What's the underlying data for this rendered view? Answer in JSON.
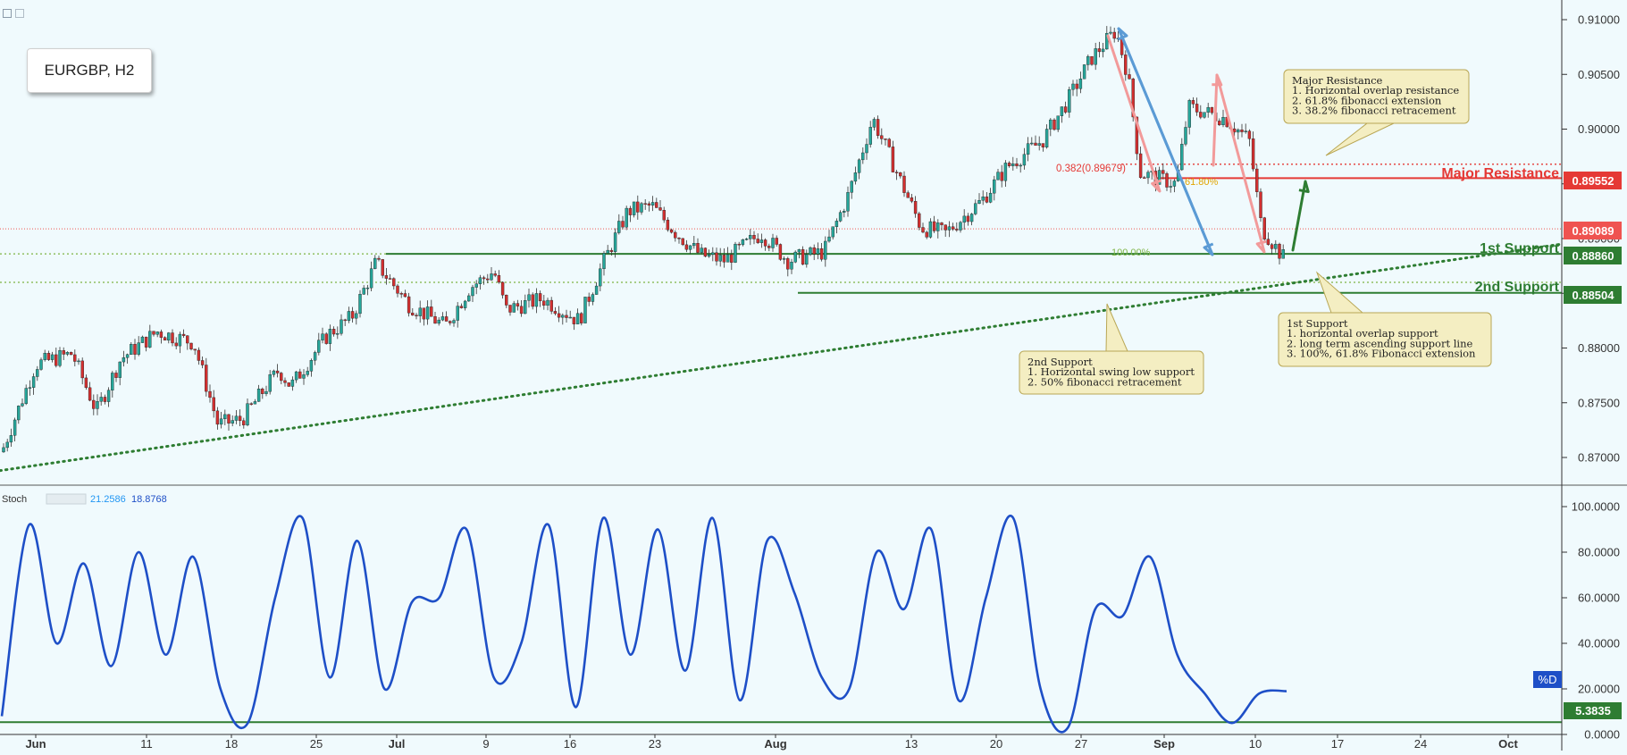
{
  "symbol": "EURGBP, H2",
  "labels": {
    "major_resistance": "Major Resistance",
    "first_support": "1st Support",
    "second_support": "2nd Support",
    "fib_0382": "0.382(0.89679)",
    "fib_618": "61.80%",
    "fib_100": "100.00%"
  },
  "annotations": {
    "major_resistance": [
      "Major Resistance",
      "1. Horizontal overlap resistance",
      "2. 61.8% fibonacci extension",
      "3. 38.2% fibonacci retracement"
    ],
    "first_support": [
      "1st Support",
      "1. horizontal overlap support",
      "2. long term ascending support line",
      "3. 100%, 61.8% Fibonacci extension"
    ],
    "second_support": [
      "2nd Support",
      "1. Horizontal swing low support",
      "2. 50% fibonacci retracement"
    ]
  },
  "price_tags": [
    {
      "value": "0.89552",
      "color": "#e53935"
    },
    {
      "value": "0.89089",
      "color": "#ef5350"
    },
    {
      "value": "0.88860",
      "color": "#2e7d32"
    },
    {
      "value": "0.88504",
      "color": "#2e7d32"
    }
  ],
  "stoch": {
    "name": "Stoch",
    "k_value": "21.2586",
    "d_value": "18.8768",
    "d_label": "%D",
    "level": "5.3835",
    "colors": {
      "k": "#2196f3",
      "d": "#1e4fc7",
      "level": "#2e7d32"
    }
  },
  "colors": {
    "up_candle": "#26a69a",
    "down_candle": "#d32f2f",
    "background": "#f0fafd",
    "resistance": "#e53935",
    "support": "#2e7d32",
    "trendline": "#2e7d32",
    "annotation_fill": "#f4eec2",
    "annotation_border": "#b9a755"
  },
  "chart_data": [
    {
      "type": "candlestick",
      "title": "EURGBP, H2",
      "x_ticks": [
        "Jun",
        "11",
        "18",
        "25",
        "Jul",
        "9",
        "16",
        "23",
        "Aug",
        "13",
        "20",
        "27",
        "Sep",
        "10",
        "17",
        "24",
        "Oct"
      ],
      "y_ticks": [
        "0.91000",
        "0.90500",
        "0.90000",
        "0.89500",
        "0.89000",
        "0.88500",
        "0.88000",
        "0.87500",
        "0.87000"
      ],
      "ylim": [
        0.8675,
        0.9115
      ],
      "close_path": [
        {
          "x": "Jun",
          "y": 0.8705
        },
        {
          "x": "Jun 1",
          "y": 0.8785
        },
        {
          "x": "Jun 4",
          "y": 0.8795
        },
        {
          "x": "Jun 6",
          "y": 0.8742
        },
        {
          "x": "Jun 8",
          "y": 0.879
        },
        {
          "x": "Jun 11",
          "y": 0.8815
        },
        {
          "x": "Jun 14",
          "y": 0.8805
        },
        {
          "x": "Jun 16",
          "y": 0.873
        },
        {
          "x": "Jun 18",
          "y": 0.8735
        },
        {
          "x": "Jun 21",
          "y": 0.878
        },
        {
          "x": "Jun 22",
          "y": 0.8765
        },
        {
          "x": "Jun 25",
          "y": 0.8812
        },
        {
          "x": "Jun 27",
          "y": 0.8828
        },
        {
          "x": "Jun 29",
          "y": 0.8878
        },
        {
          "x": "Jul 2",
          "y": 0.884
        },
        {
          "x": "Jul 5",
          "y": 0.882
        },
        {
          "x": "Jul 7",
          "y": 0.8855
        },
        {
          "x": "Jul 9",
          "y": 0.887
        },
        {
          "x": "Jul 10",
          "y": 0.8835
        },
        {
          "x": "Jul 13",
          "y": 0.8845
        },
        {
          "x": "Jul 16",
          "y": 0.8825
        },
        {
          "x": "Jul 18",
          "y": 0.8878
        },
        {
          "x": "Jul 20",
          "y": 0.8925
        },
        {
          "x": "Jul 22",
          "y": 0.893
        },
        {
          "x": "Jul 24",
          "y": 0.8905
        },
        {
          "x": "Jul 26",
          "y": 0.8885
        },
        {
          "x": "Jul 28",
          "y": 0.888
        },
        {
          "x": "Jul 31",
          "y": 0.8905
        },
        {
          "x": "Aug 2",
          "y": 0.888
        },
        {
          "x": "Aug 5",
          "y": 0.8888
        },
        {
          "x": "Aug 7",
          "y": 0.894
        },
        {
          "x": "Aug 9",
          "y": 0.901
        },
        {
          "x": "Aug 11",
          "y": 0.896
        },
        {
          "x": "Aug 13",
          "y": 0.891
        },
        {
          "x": "Aug 15",
          "y": 0.8905
        },
        {
          "x": "Aug 18",
          "y": 0.8935
        },
        {
          "x": "Aug 20",
          "y": 0.8965
        },
        {
          "x": "Aug 23",
          "y": 0.899
        },
        {
          "x": "Aug 25",
          "y": 0.9025
        },
        {
          "x": "Aug 27",
          "y": 0.9065
        },
        {
          "x": "Aug 29",
          "y": 0.909
        },
        {
          "x": "Aug 30",
          "y": 0.905
        },
        {
          "x": "Aug 31",
          "y": 0.896
        },
        {
          "x": "Sep 2",
          "y": 0.895
        },
        {
          "x": "Sep 3",
          "y": 0.902
        },
        {
          "x": "Sep 6",
          "y": 0.901
        },
        {
          "x": "Sep 8",
          "y": 0.899
        },
        {
          "x": "Sep 9",
          "y": 0.891
        },
        {
          "x": "Sep 11",
          "y": 0.888
        },
        {
          "x": "Sep 12",
          "y": 0.89
        },
        {
          "x": "Sep 13",
          "y": 0.8901
        }
      ],
      "horizontal_levels": [
        {
          "name": "Major Resistance",
          "value": 0.89552
        },
        {
          "name": "1st Support",
          "value": 0.8886
        },
        {
          "name": "2nd Support",
          "value": 0.88504
        },
        {
          "name": "current",
          "value": 0.89089
        },
        {
          "name": "fibonacci 0.382",
          "value": 0.89679
        }
      ],
      "trendline": [
        {
          "x": "Jun",
          "y": 0.8688
        },
        {
          "x": "Oct",
          "y": 0.8895
        }
      ],
      "grid": false
    },
    {
      "type": "line",
      "title": "Stoch",
      "x_ticks": [
        "Jun",
        "11",
        "18",
        "25",
        "Jul",
        "9",
        "16",
        "23",
        "Aug",
        "13",
        "20",
        "27",
        "Sep",
        "10",
        "17",
        "24",
        "Oct"
      ],
      "y_ticks": [
        "100.0000",
        "80.0000",
        "60.0000",
        "40.0000",
        "20.0000",
        "0.0000"
      ],
      "ylim": [
        0,
        100
      ],
      "series": [
        {
          "name": "%D",
          "values": [
            8,
            92,
            40,
            75,
            30,
            80,
            35,
            78,
            20,
            5,
            60,
            95,
            25,
            85,
            20,
            58,
            60,
            90,
            25,
            40,
            92,
            12,
            95,
            35,
            90,
            28,
            95,
            15,
            85,
            62,
            25,
            20,
            80,
            55,
            90,
            15,
            60,
            95,
            20,
            3,
            55,
            52,
            78,
            35,
            18,
            5,
            18,
            19
          ]
        }
      ],
      "level": 5.3835,
      "grid": false
    }
  ]
}
